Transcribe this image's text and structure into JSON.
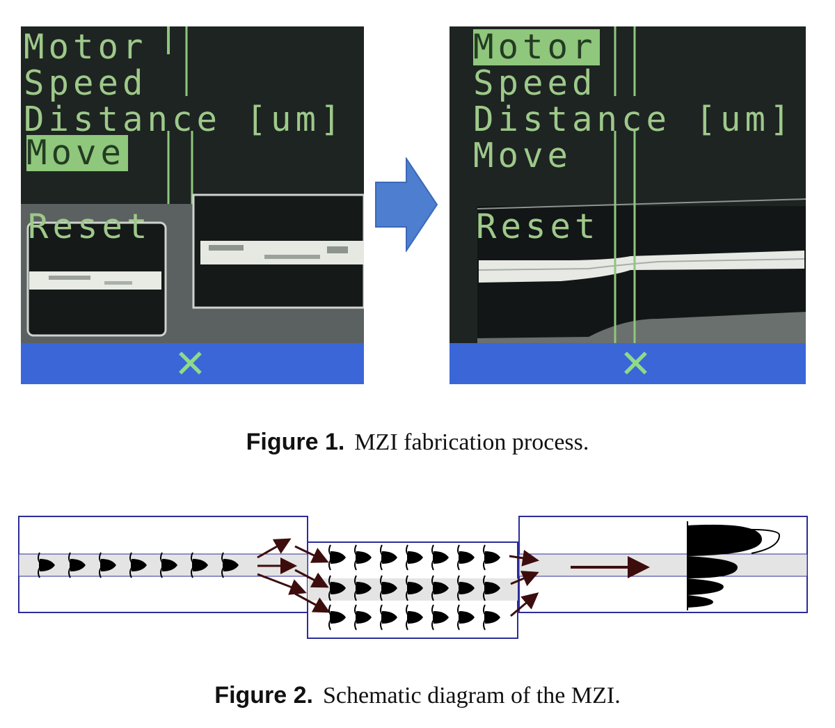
{
  "figure1": {
    "before_screen": {
      "menu": [
        "Motor",
        "Speed",
        "Distance  [um]",
        "Move"
      ],
      "selected": "Move",
      "reset_label": "Reset",
      "close_glyph": "✕"
    },
    "after_screen": {
      "menu": [
        "Motor",
        "Speed",
        "Distance  [um]",
        "Move"
      ],
      "selected": "Motor",
      "reset_label": "Reset",
      "close_glyph": "✕"
    },
    "arrow_icon": "right-arrow-icon",
    "caption_label": "Figure 1.",
    "caption_text": "MZI fabrication process."
  },
  "figure2": {
    "caption_label": "Figure 2.",
    "caption_text": "Schematic diagram of the MZI."
  },
  "colors": {
    "screen_bg": "#1c2120",
    "menu_text": "#9ec98a",
    "highlight": "#8fc77d",
    "status_bar": "#3a66d8",
    "arrow": "#4d7ed0",
    "box_border": "#2c2c9a",
    "core": "#e4e4e4",
    "wave_arrow": "#3d0d0d"
  }
}
